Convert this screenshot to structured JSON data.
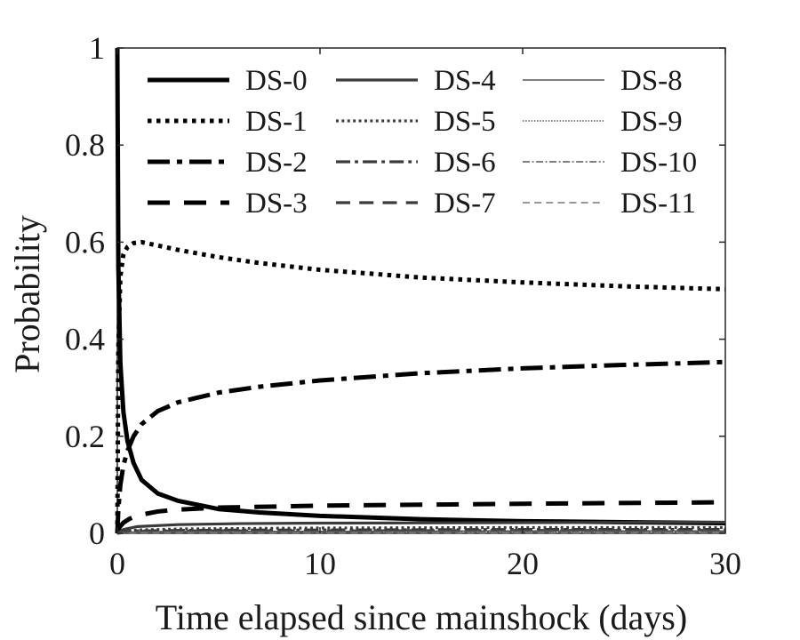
{
  "chart_data": {
    "type": "line",
    "title": "",
    "xlabel": "Time elapsed since mainshock (days)",
    "ylabel": "Probability",
    "xlim": [
      0,
      30
    ],
    "ylim": [
      0,
      1
    ],
    "xticks": [
      0,
      10,
      20,
      30
    ],
    "yticks": [
      0,
      0.2,
      0.4,
      0.6,
      0.8,
      1
    ],
    "ytick_labels": [
      "0",
      "0.2",
      "0.4",
      "0.6",
      "0.8",
      "1"
    ],
    "grid": false,
    "legend_position": "top",
    "series": [
      {
        "name": "DS-0",
        "color": "#000000",
        "style": "solid",
        "weight": "thick",
        "x": [
          0,
          0.05,
          0.15,
          0.3,
          0.5,
          0.8,
          1.2,
          2,
          3,
          5,
          7,
          10,
          15,
          20,
          25,
          30
        ],
        "y": [
          1.0,
          0.55,
          0.35,
          0.25,
          0.19,
          0.145,
          0.11,
          0.082,
          0.067,
          0.05,
          0.043,
          0.036,
          0.029,
          0.025,
          0.023,
          0.021
        ]
      },
      {
        "name": "DS-1",
        "color": "#000000",
        "style": "dotted",
        "weight": "thick",
        "x": [
          0,
          0.05,
          0.15,
          0.3,
          0.5,
          0.8,
          1.2,
          2,
          3,
          5,
          7,
          10,
          15,
          20,
          25,
          30
        ],
        "y": [
          0.0,
          0.38,
          0.53,
          0.575,
          0.59,
          0.598,
          0.6,
          0.593,
          0.584,
          0.569,
          0.557,
          0.543,
          0.527,
          0.517,
          0.509,
          0.503
        ]
      },
      {
        "name": "DS-2",
        "color": "#000000",
        "style": "dashdot",
        "weight": "thick",
        "x": [
          0,
          0.05,
          0.15,
          0.3,
          0.5,
          0.8,
          1.2,
          2,
          3,
          5,
          7,
          10,
          15,
          20,
          25,
          30
        ],
        "y": [
          0.0,
          0.05,
          0.1,
          0.14,
          0.17,
          0.2,
          0.225,
          0.252,
          0.27,
          0.29,
          0.302,
          0.315,
          0.33,
          0.34,
          0.347,
          0.353
        ]
      },
      {
        "name": "DS-3",
        "color": "#000000",
        "style": "dashed",
        "weight": "thick",
        "x": [
          0,
          0.1,
          0.3,
          0.6,
          1,
          2,
          3,
          5,
          10,
          20,
          30
        ],
        "y": [
          0.0,
          0.012,
          0.022,
          0.03,
          0.037,
          0.045,
          0.049,
          0.053,
          0.057,
          0.061,
          0.064
        ]
      },
      {
        "name": "DS-4",
        "color": "#3a3a3a",
        "style": "solid",
        "weight": "medium",
        "x": [
          0,
          0.3,
          1,
          3,
          6,
          10,
          20,
          30
        ],
        "y": [
          0.0,
          0.008,
          0.014,
          0.018,
          0.02,
          0.021,
          0.022,
          0.023
        ]
      },
      {
        "name": "DS-5",
        "color": "#3a3a3a",
        "style": "dotted",
        "weight": "medium",
        "x": [
          0,
          0.3,
          1,
          3,
          6,
          10,
          20,
          30
        ],
        "y": [
          0.0,
          0.004,
          0.007,
          0.009,
          0.01,
          0.011,
          0.012,
          0.012
        ]
      },
      {
        "name": "DS-6",
        "color": "#3a3a3a",
        "style": "dashdot",
        "weight": "medium",
        "x": [
          0,
          0.3,
          1,
          3,
          6,
          10,
          20,
          30
        ],
        "y": [
          0.0,
          0.003,
          0.005,
          0.006,
          0.007,
          0.007,
          0.008,
          0.008
        ]
      },
      {
        "name": "DS-7",
        "color": "#3a3a3a",
        "style": "dashed",
        "weight": "medium",
        "x": [
          0,
          0.3,
          1,
          3,
          6,
          10,
          20,
          30
        ],
        "y": [
          0.0,
          0.002,
          0.004,
          0.005,
          0.005,
          0.005,
          0.006,
          0.006
        ]
      },
      {
        "name": "DS-8",
        "color": "#555555",
        "style": "solid",
        "weight": "thin",
        "x": [
          0,
          0.3,
          1,
          3,
          6,
          10,
          20,
          30
        ],
        "y": [
          0.0,
          0.002,
          0.003,
          0.004,
          0.004,
          0.004,
          0.005,
          0.005
        ]
      },
      {
        "name": "DS-9",
        "color": "#555555",
        "style": "dotted",
        "weight": "thin",
        "x": [
          0,
          0.3,
          1,
          3,
          6,
          10,
          20,
          30
        ],
        "y": [
          0.0,
          0.001,
          0.002,
          0.003,
          0.003,
          0.003,
          0.003,
          0.003
        ]
      },
      {
        "name": "DS-10",
        "color": "#555555",
        "style": "dashdot",
        "weight": "thin",
        "x": [
          0,
          0.3,
          1,
          3,
          6,
          10,
          20,
          30
        ],
        "y": [
          0.0,
          0.001,
          0.001,
          0.002,
          0.002,
          0.002,
          0.002,
          0.002
        ]
      },
      {
        "name": "DS-11",
        "color": "#777777",
        "style": "dashed",
        "weight": "thin",
        "x": [
          0,
          0.3,
          1,
          3,
          6,
          10,
          20,
          30
        ],
        "y": [
          0.0,
          0.0005,
          0.001,
          0.001,
          0.001,
          0.001,
          0.001,
          0.001
        ]
      }
    ]
  }
}
